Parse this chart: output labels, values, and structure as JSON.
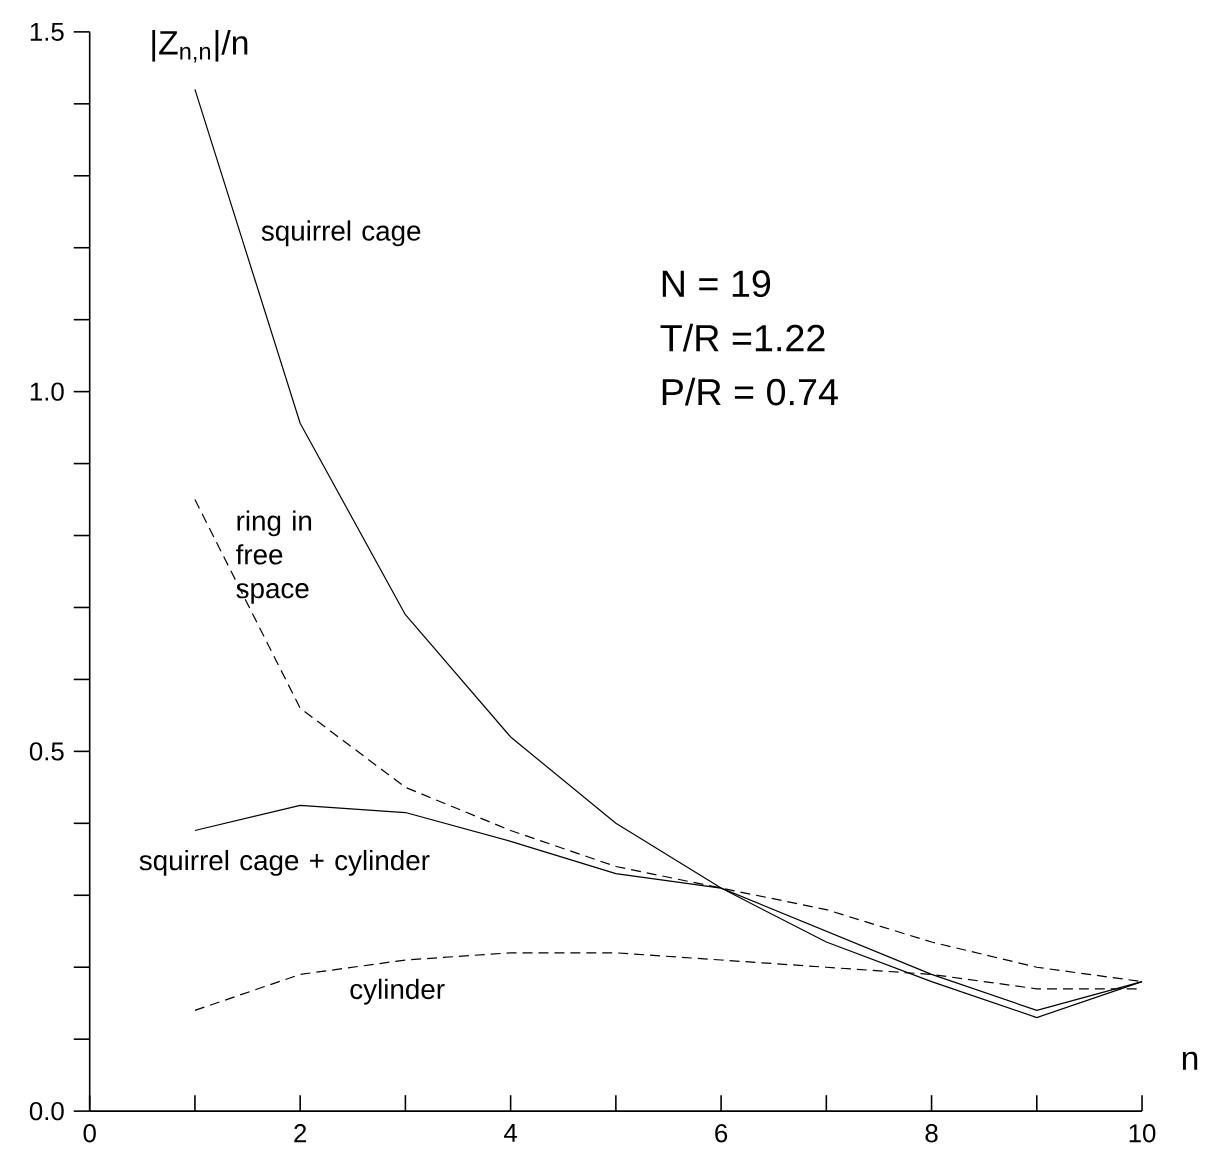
{
  "chart_data": {
    "type": "line",
    "ylabel": "|Z$_{n,n}$|/n",
    "xlabel": "n",
    "x": [
      1,
      2,
      3,
      4,
      5,
      6,
      7,
      8,
      9,
      10
    ],
    "series": [
      {
        "name": "squirrel cage",
        "color": "#000000",
        "line_style": "solid",
        "values": [
          1.42,
          0.956,
          0.69,
          0.52,
          0.4,
          0.31,
          0.25,
          0.19,
          0.14,
          0.18
        ]
      },
      {
        "name": "ring in free space",
        "color": "#000000",
        "line_style": "dashed",
        "values": [
          0.85,
          0.56,
          0.45,
          0.39,
          0.34,
          0.31,
          0.28,
          0.235,
          0.2,
          0.18
        ]
      },
      {
        "name": "squirrel cage + cylinder",
        "color": "#000000",
        "line_style": "solid",
        "values": [
          0.39,
          0.425,
          0.415,
          0.375,
          0.33,
          0.31,
          0.235,
          0.18,
          0.13,
          0.18
        ]
      },
      {
        "name": "cylinder",
        "color": "#000000",
        "line_style": "dashed",
        "values": [
          0.14,
          0.19,
          0.21,
          0.22,
          0.22,
          0.21,
          0.2,
          0.19,
          0.17,
          0.17
        ]
      }
    ],
    "xlim": [
      0,
      10
    ],
    "ylim": [
      0,
      1.5
    ],
    "xticks": [
      0,
      {
        "value": 1,
        "label": null
      },
      2,
      {
        "value": 3,
        "label": null
      },
      4,
      {
        "value": 5,
        "label": null
      },
      6,
      {
        "value": 7,
        "label": null
      },
      8,
      {
        "value": 9,
        "label": null
      },
      10
    ],
    "yticks": [
      {
        "value": 0,
        "label": "0.0"
      },
      {
        "value": 0.1,
        "label": null
      },
      {
        "value": 0.2,
        "label": null
      },
      {
        "value": 0.3,
        "label": null
      },
      {
        "value": 0.4,
        "label": null
      },
      {
        "value": 0.5,
        "label": "0.5"
      },
      {
        "value": 0.6,
        "label": null
      },
      {
        "value": 0.7,
        "label": null
      },
      {
        "value": 0.8,
        "label": null
      },
      {
        "value": 0.9,
        "label": null
      },
      {
        "value": 1.0,
        "label": "1.0"
      },
      {
        "value": 1.1,
        "label": null
      },
      {
        "value": 1.2,
        "label": null
      },
      {
        "value": 1.3,
        "label": null
      },
      {
        "value": 1.4,
        "label": null
      },
      {
        "value": 1.5,
        "label": "1.5"
      }
    ],
    "annotations": [
      "N = 19",
      "T/R =1.22",
      "P/R = 0.74"
    ],
    "grid": false,
    "legend": false
  }
}
